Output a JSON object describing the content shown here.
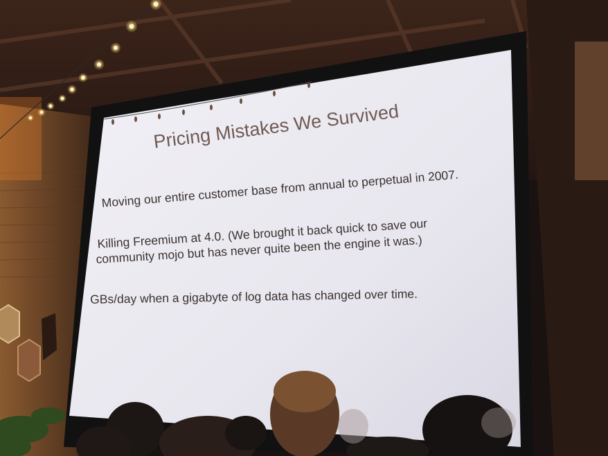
{
  "slide": {
    "title": "Pricing Mistakes We Survived",
    "bullets": [
      {
        "lines": [
          "Moving our entire customer base from annual to perpetual in 2007."
        ]
      },
      {
        "lines": [
          "Killing Freemium at 4.0. (We brought it back quick to save our",
          "community mojo but has never quite been the engine it was.)"
        ]
      },
      {
        "lines": [
          "GBs/day when a gigabyte of log data has changed over time."
        ]
      }
    ]
  },
  "colors": {
    "screen": "#e9e7ef",
    "title_text": "#6e5a54",
    "body_text": "#3a3230",
    "wood_ceiling": "#4a2e22",
    "string_light": "#ffe39a"
  }
}
